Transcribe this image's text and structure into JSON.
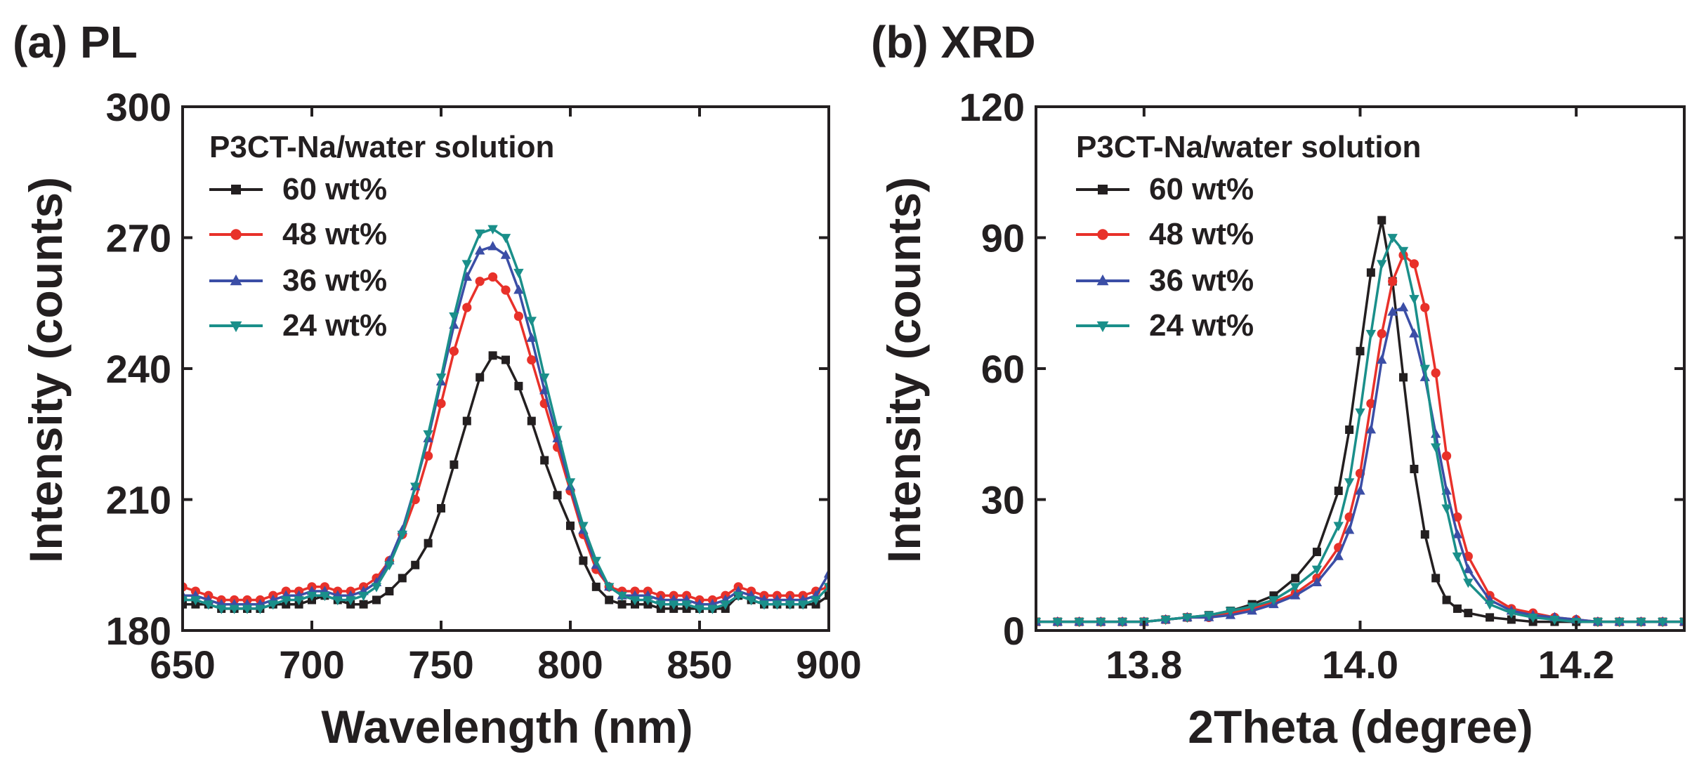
{
  "chart_data": [
    {
      "type": "line",
      "panel_label": "(a) PL",
      "xlabel": "Wavelength (nm)",
      "ylabel": "Intensity (counts)",
      "xlim": [
        650,
        900
      ],
      "ylim": [
        180,
        300
      ],
      "xticks": [
        650,
        700,
        750,
        800,
        850,
        900
      ],
      "yticks": [
        180,
        210,
        240,
        270,
        300
      ],
      "grid": false,
      "legend_title": "P3CT-Na/water solution",
      "legend_position": "top-left",
      "series": [
        {
          "name": "60 wt%",
          "color": "#231f20",
          "marker": "square",
          "x": [
            650,
            655,
            660,
            665,
            670,
            675,
            680,
            685,
            690,
            695,
            700,
            705,
            710,
            715,
            720,
            725,
            730,
            735,
            740,
            745,
            750,
            755,
            760,
            765,
            770,
            775,
            780,
            785,
            790,
            795,
            800,
            805,
            810,
            815,
            820,
            825,
            830,
            835,
            840,
            845,
            850,
            855,
            860,
            865,
            870,
            875,
            880,
            885,
            890,
            895,
            900
          ],
          "y": [
            186,
            186,
            186,
            185,
            185,
            185,
            185,
            186,
            186,
            186,
            187,
            188,
            187,
            186,
            186,
            187,
            189,
            192,
            195,
            200,
            208,
            218,
            228,
            238,
            243,
            242,
            236,
            228,
            219,
            211,
            204,
            196,
            190,
            187,
            186,
            186,
            186,
            185,
            185,
            185,
            185,
            185,
            185,
            188,
            187,
            186,
            186,
            186,
            186,
            186,
            188
          ]
        },
        {
          "name": "48 wt%",
          "color": "#e8312a",
          "marker": "circle",
          "x": [
            650,
            655,
            660,
            665,
            670,
            675,
            680,
            685,
            690,
            695,
            700,
            705,
            710,
            715,
            720,
            725,
            730,
            735,
            740,
            745,
            750,
            755,
            760,
            765,
            770,
            775,
            780,
            785,
            790,
            795,
            800,
            805,
            810,
            815,
            820,
            825,
            830,
            835,
            840,
            845,
            850,
            855,
            860,
            865,
            870,
            875,
            880,
            885,
            890,
            895,
            900
          ],
          "y": [
            190,
            189,
            188,
            187,
            187,
            187,
            187,
            188,
            189,
            189,
            190,
            190,
            189,
            189,
            190,
            192,
            196,
            202,
            210,
            220,
            232,
            244,
            254,
            260,
            261,
            258,
            252,
            242,
            232,
            222,
            212,
            202,
            194,
            190,
            189,
            189,
            189,
            188,
            188,
            188,
            187,
            187,
            188,
            190,
            189,
            188,
            188,
            188,
            188,
            189,
            190
          ]
        },
        {
          "name": "36 wt%",
          "color": "#3b4ea6",
          "marker": "triangle-up",
          "x": [
            650,
            655,
            660,
            665,
            670,
            675,
            680,
            685,
            690,
            695,
            700,
            705,
            710,
            715,
            720,
            725,
            730,
            735,
            740,
            745,
            750,
            755,
            760,
            765,
            770,
            775,
            780,
            785,
            790,
            795,
            800,
            805,
            810,
            815,
            820,
            825,
            830,
            835,
            840,
            845,
            850,
            855,
            860,
            865,
            870,
            875,
            880,
            885,
            890,
            895,
            900
          ],
          "y": [
            188,
            188,
            187,
            186,
            186,
            186,
            186,
            187,
            188,
            188,
            189,
            189,
            188,
            188,
            189,
            191,
            196,
            203,
            213,
            224,
            237,
            250,
            261,
            267,
            268,
            266,
            258,
            247,
            235,
            224,
            213,
            203,
            195,
            190,
            188,
            188,
            188,
            187,
            187,
            187,
            186,
            186,
            187,
            189,
            188,
            187,
            187,
            187,
            187,
            188,
            193
          ]
        },
        {
          "name": "24 wt%",
          "color": "#1a8f8a",
          "marker": "triangle-down",
          "x": [
            650,
            655,
            660,
            665,
            670,
            675,
            680,
            685,
            690,
            695,
            700,
            705,
            710,
            715,
            720,
            725,
            730,
            735,
            740,
            745,
            750,
            755,
            760,
            765,
            770,
            775,
            780,
            785,
            790,
            795,
            800,
            805,
            810,
            815,
            820,
            825,
            830,
            835,
            840,
            845,
            850,
            855,
            860,
            865,
            870,
            875,
            880,
            885,
            890,
            895,
            900
          ],
          "y": [
            187,
            187,
            186,
            185,
            185,
            185,
            185,
            186,
            187,
            187,
            188,
            188,
            187,
            187,
            188,
            190,
            195,
            202,
            213,
            225,
            238,
            252,
            264,
            271,
            272,
            270,
            262,
            251,
            238,
            226,
            214,
            204,
            196,
            190,
            188,
            187,
            187,
            186,
            186,
            186,
            185,
            185,
            186,
            188,
            187,
            186,
            186,
            186,
            186,
            187,
            190
          ]
        }
      ]
    },
    {
      "type": "line",
      "panel_label": "(b) XRD",
      "xlabel": "2Theta (degree)",
      "ylabel": "Intensity (counts)",
      "xlim": [
        13.7,
        14.3
      ],
      "ylim": [
        0,
        120
      ],
      "xticks": [
        13.8,
        14.0,
        14.2
      ],
      "yticks": [
        0,
        30,
        60,
        90,
        120
      ],
      "grid": false,
      "legend_title": "P3CT-Na/water solution",
      "legend_position": "top-left",
      "series": [
        {
          "name": "60 wt%",
          "color": "#231f20",
          "marker": "square",
          "x": [
            13.7,
            13.72,
            13.74,
            13.76,
            13.78,
            13.8,
            13.82,
            13.84,
            13.86,
            13.88,
            13.9,
            13.92,
            13.94,
            13.96,
            13.98,
            13.99,
            14.0,
            14.01,
            14.02,
            14.03,
            14.04,
            14.05,
            14.06,
            14.07,
            14.08,
            14.09,
            14.1,
            14.12,
            14.14,
            14.16,
            14.18,
            14.2,
            14.22,
            14.24,
            14.26,
            14.28,
            14.3
          ],
          "y": [
            2,
            2,
            2,
            2,
            2,
            2,
            2.5,
            3,
            3.5,
            4.5,
            6,
            8,
            12,
            18,
            32,
            46,
            64,
            82,
            94,
            80,
            58,
            37,
            22,
            12,
            7,
            5,
            4,
            3,
            2.5,
            2,
            2,
            2,
            2,
            2,
            2,
            2,
            2
          ]
        },
        {
          "name": "48 wt%",
          "color": "#e8312a",
          "marker": "circle",
          "x": [
            13.7,
            13.72,
            13.74,
            13.76,
            13.78,
            13.8,
            13.82,
            13.84,
            13.86,
            13.88,
            13.9,
            13.92,
            13.94,
            13.96,
            13.98,
            13.99,
            14.0,
            14.01,
            14.02,
            14.03,
            14.04,
            14.05,
            14.06,
            14.07,
            14.08,
            14.09,
            14.1,
            14.12,
            14.14,
            14.16,
            14.18,
            14.2,
            14.22,
            14.24,
            14.26,
            14.28,
            14.3
          ],
          "y": [
            2,
            2,
            2,
            2,
            2,
            2,
            2.5,
            3,
            3,
            4,
            5,
            6.5,
            8.5,
            12,
            19,
            26,
            36,
            52,
            68,
            80,
            86,
            84,
            74,
            59,
            40,
            26,
            17,
            8,
            5,
            4,
            3,
            2.5,
            2,
            2,
            2,
            2,
            2
          ]
        },
        {
          "name": "36 wt%",
          "color": "#3b4ea6",
          "marker": "triangle-up",
          "x": [
            13.7,
            13.72,
            13.74,
            13.76,
            13.78,
            13.8,
            13.82,
            13.84,
            13.86,
            13.88,
            13.9,
            13.92,
            13.94,
            13.96,
            13.98,
            13.99,
            14.0,
            14.01,
            14.02,
            14.03,
            14.04,
            14.05,
            14.06,
            14.07,
            14.08,
            14.09,
            14.1,
            14.12,
            14.14,
            14.16,
            14.18,
            14.2,
            14.22,
            14.24,
            14.26,
            14.28,
            14.3
          ],
          "y": [
            2,
            2,
            2,
            2,
            2,
            2,
            2.5,
            3,
            3,
            3.5,
            4.5,
            6,
            8,
            11,
            17,
            23,
            32,
            46,
            62,
            73,
            74,
            68,
            58,
            45,
            32,
            22,
            14,
            7,
            4.5,
            3.5,
            3,
            2.5,
            2,
            2,
            2,
            2,
            2
          ]
        },
        {
          "name": "24 wt%",
          "color": "#1a8f8a",
          "marker": "triangle-down",
          "x": [
            13.7,
            13.72,
            13.74,
            13.76,
            13.78,
            13.8,
            13.82,
            13.84,
            13.86,
            13.88,
            13.9,
            13.92,
            13.94,
            13.96,
            13.98,
            13.99,
            14.0,
            14.01,
            14.02,
            14.03,
            14.04,
            14.05,
            14.06,
            14.07,
            14.08,
            14.09,
            14.1,
            14.12,
            14.14,
            14.16,
            14.18,
            14.2,
            14.22,
            14.24,
            14.26,
            14.28,
            14.3
          ],
          "y": [
            2,
            2,
            2,
            2,
            2,
            2,
            2.5,
            3,
            3.5,
            4.5,
            5.5,
            7,
            10,
            14,
            24,
            34,
            50,
            68,
            84,
            90,
            87,
            76,
            60,
            42,
            28,
            17,
            11,
            6,
            4,
            3,
            2.5,
            2,
            2,
            2,
            2,
            2,
            2
          ]
        }
      ]
    }
  ]
}
